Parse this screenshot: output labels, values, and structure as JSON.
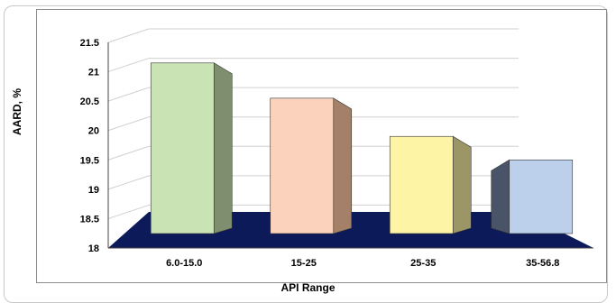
{
  "chart_data": {
    "type": "bar",
    "categories": [
      "6.0-15.0",
      "15-25",
      "25-35",
      "35-56.8"
    ],
    "values": [
      21.15,
      20.55,
      19.9,
      19.5
    ],
    "ylim": [
      18,
      21.5
    ],
    "yticks": [
      "18",
      "18.5",
      "19",
      "19.5",
      "20",
      "20.5",
      "21",
      "21.5"
    ],
    "xlabel": "API Range",
    "ylabel": "AARD, %",
    "colors": {
      "bars_front": [
        "#c9e3b5",
        "#fbd3bd",
        "#fdf4a6",
        "#bcd0ec"
      ],
      "bars_side": [
        "#7e8e6e",
        "#a48068",
        "#9c9566",
        "#4a5468"
      ],
      "floor": "#0c1a5a",
      "grid": "#d0d0d0"
    },
    "grid": true,
    "style": "3d-column"
  }
}
